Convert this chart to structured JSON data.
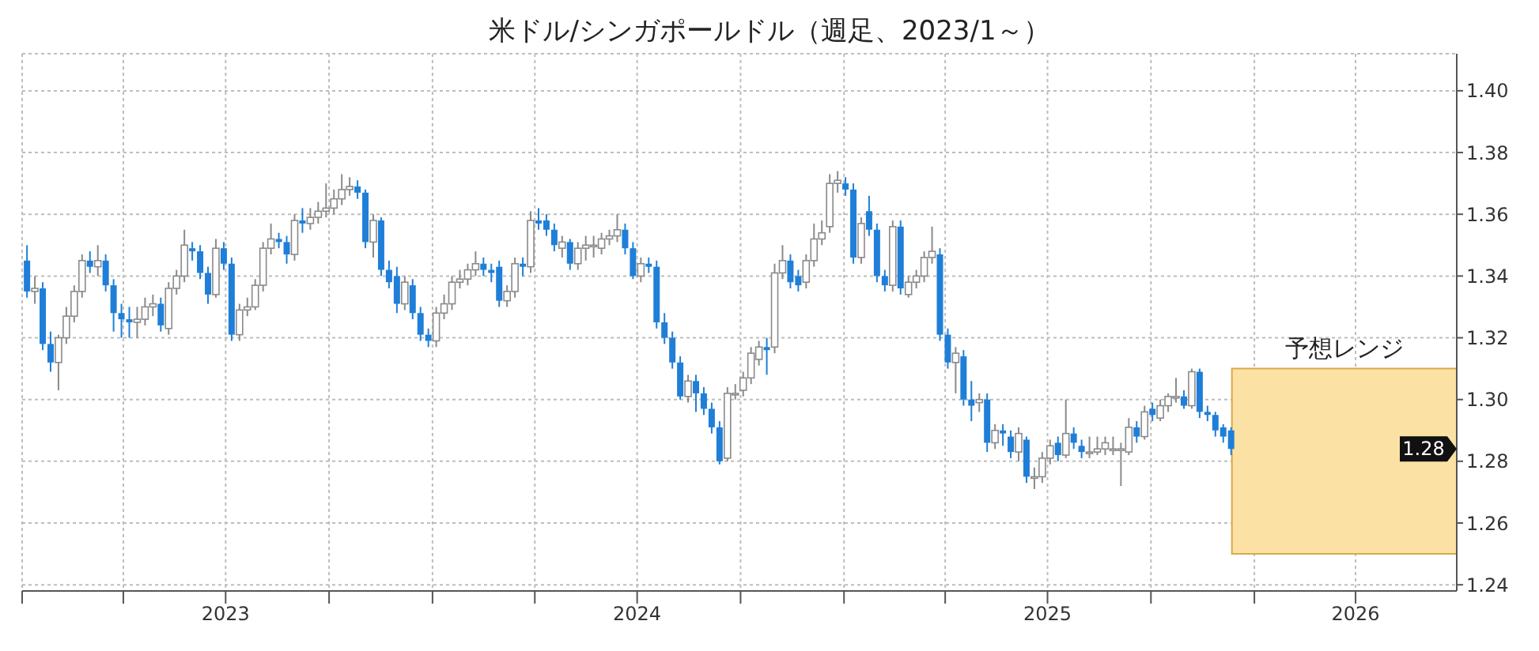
{
  "chart_data": {
    "type": "candlestick",
    "title": "米ドル/シンガポールドル（週足、2023/1～）",
    "x": [
      "2023-01-06",
      "2023-01-13",
      "2023-01-20",
      "2023-01-27",
      "2023-02-03",
      "2023-02-10",
      "2023-02-17",
      "2023-02-24",
      "2023-03-03",
      "2023-03-10",
      "2023-03-17",
      "2023-03-24",
      "2023-03-31",
      "2023-04-07",
      "2023-04-14",
      "2023-04-21",
      "2023-04-28",
      "2023-05-05",
      "2023-05-12",
      "2023-05-19",
      "2023-05-26",
      "2023-06-02",
      "2023-06-09",
      "2023-06-16",
      "2023-06-23",
      "2023-06-30",
      "2023-07-07",
      "2023-07-14",
      "2023-07-21",
      "2023-07-28",
      "2023-08-04",
      "2023-08-11",
      "2023-08-18",
      "2023-08-25",
      "2023-09-01",
      "2023-09-08",
      "2023-09-15",
      "2023-09-22",
      "2023-09-29",
      "2023-10-06",
      "2023-10-13",
      "2023-10-20",
      "2023-10-27",
      "2023-11-03",
      "2023-11-10",
      "2023-11-17",
      "2023-11-24",
      "2023-12-01",
      "2023-12-08",
      "2023-12-15",
      "2023-12-22",
      "2023-12-29",
      "2024-01-05",
      "2024-01-12",
      "2024-01-19",
      "2024-01-26",
      "2024-02-02",
      "2024-02-09",
      "2024-02-16",
      "2024-02-23",
      "2024-03-01",
      "2024-03-08",
      "2024-03-15",
      "2024-03-22",
      "2024-03-29",
      "2024-04-05",
      "2024-04-12",
      "2024-04-19",
      "2024-04-26",
      "2024-05-03",
      "2024-05-10",
      "2024-05-17",
      "2024-05-24",
      "2024-05-31",
      "2024-06-07",
      "2024-06-14",
      "2024-06-21",
      "2024-06-28",
      "2024-07-05",
      "2024-07-12",
      "2024-07-19",
      "2024-07-26",
      "2024-08-02",
      "2024-08-09",
      "2024-08-16",
      "2024-08-23",
      "2024-08-30",
      "2024-09-06",
      "2024-09-13",
      "2024-09-20",
      "2024-09-27",
      "2024-10-04",
      "2024-10-11",
      "2024-10-18",
      "2024-10-25",
      "2024-11-01",
      "2024-11-08",
      "2024-11-15",
      "2024-11-22",
      "2024-11-29",
      "2024-12-06",
      "2024-12-13",
      "2024-12-20",
      "2024-12-27",
      "2025-01-03",
      "2025-01-10",
      "2025-01-17",
      "2025-01-24",
      "2025-01-31",
      "2025-02-07",
      "2025-02-14",
      "2025-02-21",
      "2025-02-28",
      "2025-03-07",
      "2025-03-14",
      "2025-03-21",
      "2025-03-28",
      "2025-04-04",
      "2025-04-11",
      "2025-04-18",
      "2025-04-25",
      "2025-05-02",
      "2025-05-09",
      "2025-05-16",
      "2025-05-23",
      "2025-05-30",
      "2025-06-06",
      "2025-06-13",
      "2025-06-20",
      "2025-06-27",
      "2025-07-04",
      "2025-07-11",
      "2025-07-18",
      "2025-07-25",
      "2025-08-01",
      "2025-08-08",
      "2025-08-15",
      "2025-08-22",
      "2025-08-29",
      "2025-09-05",
      "2025-09-12",
      "2025-09-19",
      "2025-09-26",
      "2025-10-03",
      "2025-10-10",
      "2025-10-17",
      "2025-10-24",
      "2025-10-31",
      "2025-11-07",
      "2025-11-14",
      "2025-11-21",
      "2025-11-28",
      "2025-12-05",
      "2025-12-12"
    ],
    "ohlc": [
      [
        1.345,
        1.35,
        1.333,
        1.335
      ],
      [
        1.335,
        1.34,
        1.331,
        1.336
      ],
      [
        1.336,
        1.338,
        1.316,
        1.318
      ],
      [
        1.318,
        1.322,
        1.309,
        1.312
      ],
      [
        1.312,
        1.321,
        1.303,
        1.32
      ],
      [
        1.32,
        1.33,
        1.318,
        1.327
      ],
      [
        1.327,
        1.337,
        1.325,
        1.335
      ],
      [
        1.335,
        1.347,
        1.333,
        1.345
      ],
      [
        1.345,
        1.348,
        1.341,
        1.343
      ],
      [
        1.343,
        1.35,
        1.34,
        1.345
      ],
      [
        1.345,
        1.347,
        1.335,
        1.337
      ],
      [
        1.337,
        1.339,
        1.322,
        1.328
      ],
      [
        1.328,
        1.331,
        1.32,
        1.326
      ],
      [
        1.326,
        1.33,
        1.32,
        1.325
      ],
      [
        1.325,
        1.33,
        1.32,
        1.326
      ],
      [
        1.326,
        1.333,
        1.324,
        1.33
      ],
      [
        1.33,
        1.334,
        1.327,
        1.331
      ],
      [
        1.331,
        1.333,
        1.322,
        1.324
      ],
      [
        1.323,
        1.338,
        1.321,
        1.336
      ],
      [
        1.336,
        1.342,
        1.334,
        1.34
      ],
      [
        1.34,
        1.355,
        1.338,
        1.35
      ],
      [
        1.349,
        1.351,
        1.345,
        1.348
      ],
      [
        1.348,
        1.35,
        1.339,
        1.341
      ],
      [
        1.341,
        1.343,
        1.331,
        1.334
      ],
      [
        1.334,
        1.352,
        1.333,
        1.349
      ],
      [
        1.349,
        1.351,
        1.342,
        1.344
      ],
      [
        1.344,
        1.346,
        1.319,
        1.321
      ],
      [
        1.321,
        1.331,
        1.319,
        1.329
      ],
      [
        1.329,
        1.333,
        1.327,
        1.33
      ],
      [
        1.33,
        1.339,
        1.329,
        1.337
      ],
      [
        1.337,
        1.351,
        1.335,
        1.349
      ],
      [
        1.349,
        1.357,
        1.347,
        1.352
      ],
      [
        1.352,
        1.354,
        1.349,
        1.351
      ],
      [
        1.351,
        1.353,
        1.344,
        1.347
      ],
      [
        1.347,
        1.36,
        1.345,
        1.358
      ],
      [
        1.358,
        1.362,
        1.354,
        1.357
      ],
      [
        1.357,
        1.362,
        1.355,
        1.359
      ],
      [
        1.359,
        1.364,
        1.357,
        1.361
      ],
      [
        1.361,
        1.37,
        1.359,
        1.362
      ],
      [
        1.362,
        1.368,
        1.36,
        1.365
      ],
      [
        1.365,
        1.373,
        1.363,
        1.368
      ],
      [
        1.368,
        1.372,
        1.366,
        1.369
      ],
      [
        1.369,
        1.371,
        1.365,
        1.367
      ],
      [
        1.367,
        1.368,
        1.349,
        1.351
      ],
      [
        1.351,
        1.36,
        1.346,
        1.358
      ],
      [
        1.358,
        1.359,
        1.34,
        1.342
      ],
      [
        1.342,
        1.345,
        1.336,
        1.338
      ],
      [
        1.34,
        1.343,
        1.328,
        1.331
      ],
      [
        1.331,
        1.34,
        1.329,
        1.338
      ],
      [
        1.337,
        1.339,
        1.326,
        1.328
      ],
      [
        1.328,
        1.33,
        1.319,
        1.321
      ],
      [
        1.321,
        1.323,
        1.317,
        1.319
      ],
      [
        1.319,
        1.33,
        1.317,
        1.328
      ],
      [
        1.328,
        1.334,
        1.326,
        1.331
      ],
      [
        1.331,
        1.34,
        1.329,
        1.338
      ],
      [
        1.338,
        1.342,
        1.336,
        1.339
      ],
      [
        1.339,
        1.344,
        1.337,
        1.342
      ],
      [
        1.342,
        1.348,
        1.34,
        1.344
      ],
      [
        1.344,
        1.346,
        1.34,
        1.342
      ],
      [
        1.342,
        1.344,
        1.338,
        1.341
      ],
      [
        1.343,
        1.345,
        1.33,
        1.332
      ],
      [
        1.332,
        1.337,
        1.33,
        1.335
      ],
      [
        1.335,
        1.346,
        1.333,
        1.344
      ],
      [
        1.344,
        1.346,
        1.34,
        1.343
      ],
      [
        1.343,
        1.361,
        1.341,
        1.358
      ],
      [
        1.358,
        1.362,
        1.355,
        1.357
      ],
      [
        1.358,
        1.36,
        1.353,
        1.355
      ],
      [
        1.355,
        1.357,
        1.348,
        1.35
      ],
      [
        1.349,
        1.353,
        1.346,
        1.351
      ],
      [
        1.351,
        1.352,
        1.342,
        1.344
      ],
      [
        1.344,
        1.351,
        1.342,
        1.349
      ],
      [
        1.349,
        1.353,
        1.345,
        1.35
      ],
      [
        1.35,
        1.353,
        1.346,
        1.35
      ],
      [
        1.349,
        1.354,
        1.347,
        1.352
      ],
      [
        1.352,
        1.355,
        1.35,
        1.353
      ],
      [
        1.353,
        1.36,
        1.351,
        1.355
      ],
      [
        1.355,
        1.357,
        1.347,
        1.349
      ],
      [
        1.349,
        1.351,
        1.339,
        1.34
      ],
      [
        1.34,
        1.346,
        1.338,
        1.344
      ],
      [
        1.344,
        1.346,
        1.341,
        1.343
      ],
      [
        1.343,
        1.345,
        1.323,
        1.325
      ],
      [
        1.325,
        1.328,
        1.318,
        1.32
      ],
      [
        1.32,
        1.322,
        1.31,
        1.312
      ],
      [
        1.312,
        1.314,
        1.3,
        1.301
      ],
      [
        1.301,
        1.308,
        1.299,
        1.306
      ],
      [
        1.306,
        1.308,
        1.296,
        1.302
      ],
      [
        1.302,
        1.304,
        1.295,
        1.297
      ],
      [
        1.297,
        1.299,
        1.289,
        1.291
      ],
      [
        1.291,
        1.293,
        1.279,
        1.28
      ],
      [
        1.281,
        1.304,
        1.28,
        1.302
      ],
      [
        1.302,
        1.305,
        1.3,
        1.302
      ],
      [
        1.303,
        1.309,
        1.301,
        1.307
      ],
      [
        1.307,
        1.317,
        1.305,
        1.315
      ],
      [
        1.313,
        1.319,
        1.311,
        1.317
      ],
      [
        1.317,
        1.32,
        1.308,
        1.316
      ],
      [
        1.317,
        1.344,
        1.315,
        1.341
      ],
      [
        1.341,
        1.35,
        1.339,
        1.345
      ],
      [
        1.345,
        1.347,
        1.336,
        1.338
      ],
      [
        1.34,
        1.342,
        1.335,
        1.337
      ],
      [
        1.338,
        1.347,
        1.336,
        1.345
      ],
      [
        1.345,
        1.357,
        1.343,
        1.352
      ],
      [
        1.352,
        1.358,
        1.35,
        1.354
      ],
      [
        1.356,
        1.373,
        1.354,
        1.37
      ],
      [
        1.37,
        1.374,
        1.367,
        1.371
      ],
      [
        1.37,
        1.372,
        1.366,
        1.368
      ],
      [
        1.368,
        1.37,
        1.344,
        1.346
      ],
      [
        1.346,
        1.359,
        1.344,
        1.357
      ],
      [
        1.361,
        1.366,
        1.353,
        1.355
      ],
      [
        1.355,
        1.357,
        1.338,
        1.34
      ],
      [
        1.34,
        1.342,
        1.335,
        1.337
      ],
      [
        1.337,
        1.358,
        1.335,
        1.356
      ],
      [
        1.356,
        1.358,
        1.334,
        1.336
      ],
      [
        1.334,
        1.34,
        1.333,
        1.338
      ],
      [
        1.338,
        1.342,
        1.336,
        1.34
      ],
      [
        1.34,
        1.348,
        1.338,
        1.346
      ],
      [
        1.346,
        1.356,
        1.344,
        1.348
      ],
      [
        1.347,
        1.349,
        1.319,
        1.321
      ],
      [
        1.321,
        1.323,
        1.31,
        1.312
      ],
      [
        1.312,
        1.317,
        1.302,
        1.315
      ],
      [
        1.314,
        1.316,
        1.298,
        1.3
      ],
      [
        1.3,
        1.306,
        1.293,
        1.298
      ],
      [
        1.299,
        1.302,
        1.296,
        1.3
      ],
      [
        1.3,
        1.302,
        1.283,
        1.286
      ],
      [
        1.286,
        1.292,
        1.284,
        1.29
      ],
      [
        1.29,
        1.292,
        1.285,
        1.289
      ],
      [
        1.288,
        1.29,
        1.281,
        1.283
      ],
      [
        1.283,
        1.291,
        1.28,
        1.289
      ],
      [
        1.287,
        1.288,
        1.273,
        1.275
      ],
      [
        1.275,
        1.278,
        1.271,
        1.275
      ],
      [
        1.275,
        1.283,
        1.273,
        1.281
      ],
      [
        1.281,
        1.287,
        1.279,
        1.285
      ],
      [
        1.286,
        1.288,
        1.28,
        1.282
      ],
      [
        1.282,
        1.3,
        1.281,
        1.289
      ],
      [
        1.289,
        1.291,
        1.284,
        1.286
      ],
      [
        1.285,
        1.287,
        1.281,
        1.283
      ],
      [
        1.283,
        1.288,
        1.281,
        1.283
      ],
      [
        1.283,
        1.288,
        1.282,
        1.284
      ],
      [
        1.284,
        1.288,
        1.282,
        1.286
      ],
      [
        1.284,
        1.288,
        1.282,
        1.284
      ],
      [
        1.284,
        1.286,
        1.272,
        1.284
      ],
      [
        1.283,
        1.294,
        1.282,
        1.291
      ],
      [
        1.291,
        1.293,
        1.286,
        1.288
      ],
      [
        1.288,
        1.298,
        1.287,
        1.296
      ],
      [
        1.297,
        1.299,
        1.293,
        1.295
      ],
      [
        1.294,
        1.3,
        1.293,
        1.298
      ],
      [
        1.298,
        1.302,
        1.296,
        1.301
      ],
      [
        1.301,
        1.307,
        1.299,
        1.301
      ],
      [
        1.301,
        1.303,
        1.297,
        1.298
      ],
      [
        1.298,
        1.31,
        1.297,
        1.309
      ],
      [
        1.309,
        1.31,
        1.294,
        1.296
      ],
      [
        1.296,
        1.298,
        1.293,
        1.295
      ],
      [
        1.295,
        1.296,
        1.288,
        1.29
      ],
      [
        1.291,
        1.292,
        1.286,
        1.288
      ],
      [
        1.29,
        1.291,
        1.282,
        1.284
      ]
    ],
    "xlim": [
      "2023-01-01",
      "2026-06-30"
    ],
    "xticks": [
      {
        "value": "2023-01-01",
        "label": null
      },
      {
        "value": "2023-04-01",
        "label": null
      },
      {
        "value": "2023-07-01",
        "label": "2023"
      },
      {
        "value": "2023-10-01",
        "label": null
      },
      {
        "value": "2024-01-01",
        "label": null
      },
      {
        "value": "2024-04-01",
        "label": null
      },
      {
        "value": "2024-07-01",
        "label": "2024"
      },
      {
        "value": "2024-10-01",
        "label": null
      },
      {
        "value": "2025-01-01",
        "label": null
      },
      {
        "value": "2025-04-01",
        "label": null
      },
      {
        "value": "2025-07-01",
        "label": "2025"
      },
      {
        "value": "2025-10-01",
        "label": null
      },
      {
        "value": "2026-01-01",
        "label": null
      },
      {
        "value": "2026-04-01",
        "label": "2026"
      }
    ],
    "ylim": [
      1.238,
      1.412
    ],
    "yticks": [
      {
        "value": 1.24,
        "label": "1.24"
      },
      {
        "value": 1.26,
        "label": "1.26"
      },
      {
        "value": 1.28,
        "label": "1.28"
      },
      {
        "value": 1.3,
        "label": "1.30"
      },
      {
        "value": 1.32,
        "label": "1.32"
      },
      {
        "value": 1.34,
        "label": "1.34"
      },
      {
        "value": 1.36,
        "label": "1.36"
      },
      {
        "value": 1.38,
        "label": "1.38"
      },
      {
        "value": 1.4,
        "label": "1.40"
      }
    ],
    "bands": [
      {
        "axis": "y",
        "from": 1.25,
        "to": 1.31,
        "label": "予想レンジ",
        "color": "#fbe2a4"
      }
    ],
    "annotations": [
      "1.28"
    ],
    "grid": true
  }
}
